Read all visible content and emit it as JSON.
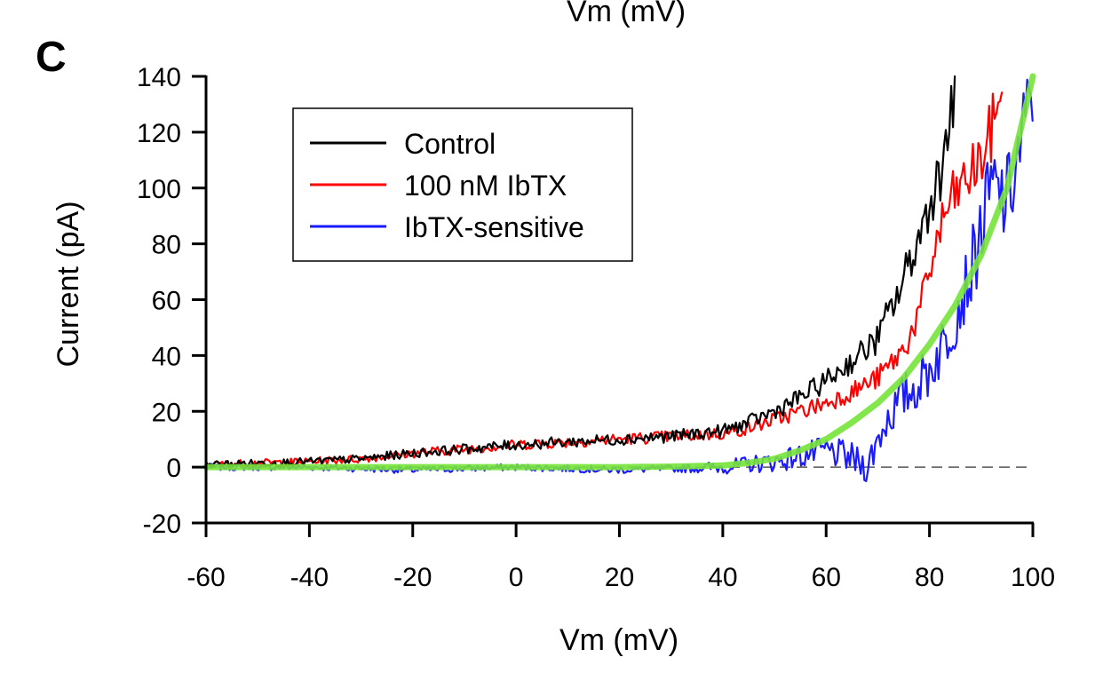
{
  "top_cut_label": "Vm (mV)",
  "panel_letter": "C",
  "chart_data": {
    "type": "line",
    "xlabel": "Vm (mV)",
    "ylabel": "Current (pA)",
    "xlim": [
      -60,
      100
    ],
    "ylim": [
      -20,
      140
    ],
    "x_ticks": [
      -60,
      -40,
      -20,
      0,
      20,
      40,
      60,
      80,
      100
    ],
    "y_ticks": [
      -20,
      0,
      20,
      40,
      60,
      80,
      100,
      120,
      140
    ],
    "x_tick_labels": [
      "-60",
      "-40",
      "-20",
      "0",
      "20",
      "40",
      "60",
      "80",
      "100"
    ],
    "y_tick_labels": [
      "-20",
      "0",
      "20",
      "40",
      "60",
      "80",
      "100",
      "120",
      "140"
    ],
    "zero_reference_line": {
      "y": 0,
      "style": "dashed",
      "x_range": [
        -60,
        100
      ]
    },
    "legend": {
      "position": "top-left",
      "entries": [
        {
          "label": "Control",
          "color": "#000000"
        },
        {
          "label": "100 nM IbTX",
          "color": "#ff0000"
        },
        {
          "label": "IbTX-sensitive",
          "color": "#1a1aff"
        }
      ]
    },
    "series": [
      {
        "name": "Control",
        "color": "#000000",
        "x": [
          -60,
          -50,
          -40,
          -30,
          -20,
          -10,
          0,
          10,
          20,
          30,
          40,
          45,
          50,
          55,
          60,
          65,
          70,
          72,
          74,
          76,
          78,
          80,
          82,
          84,
          85
        ],
        "y": [
          1,
          1.5,
          2,
          3,
          5,
          6.5,
          8,
          9,
          10,
          11,
          13,
          16,
          20,
          25,
          31,
          38,
          46,
          55,
          62,
          73,
          82,
          95,
          105,
          125,
          140
        ]
      },
      {
        "name": "100 nM IbTX",
        "color": "#ff0000",
        "x": [
          -60,
          -50,
          -40,
          -30,
          -20,
          -10,
          0,
          10,
          20,
          30,
          40,
          45,
          50,
          55,
          60,
          65,
          70,
          75,
          78,
          80,
          82,
          84,
          86,
          88,
          90,
          92,
          94
        ],
        "y": [
          1,
          1.5,
          2,
          3,
          5,
          6.5,
          8,
          9,
          10,
          11,
          12,
          14,
          17,
          20,
          23,
          27,
          32,
          42,
          55,
          70,
          85,
          95,
          100,
          105,
          110,
          120,
          140
        ]
      },
      {
        "name": "IbTX-sensitive",
        "color": "#1a1aff",
        "x": [
          -60,
          -40,
          -20,
          0,
          20,
          40,
          45,
          50,
          55,
          60,
          65,
          68,
          70,
          72,
          75,
          78,
          80,
          83,
          85,
          88,
          90,
          92,
          95,
          97,
          99,
          100
        ],
        "y": [
          0,
          0,
          -1,
          0,
          -1,
          0,
          1,
          2,
          4,
          6,
          3,
          0,
          10,
          18,
          25,
          30,
          35,
          45,
          55,
          70,
          85,
          100,
          95,
          110,
          125,
          140
        ]
      },
      {
        "name": "",
        "color": "#77e33a",
        "x": [
          -60,
          -40,
          -20,
          0,
          20,
          30,
          40,
          45,
          50,
          55,
          60,
          65,
          70,
          75,
          80,
          85,
          90,
          95,
          100
        ],
        "y": [
          0,
          0,
          0,
          0,
          0,
          0.2,
          0.6,
          1.5,
          3,
          6,
          10,
          16,
          23,
          32,
          44,
          58,
          76,
          100,
          140
        ]
      }
    ]
  }
}
